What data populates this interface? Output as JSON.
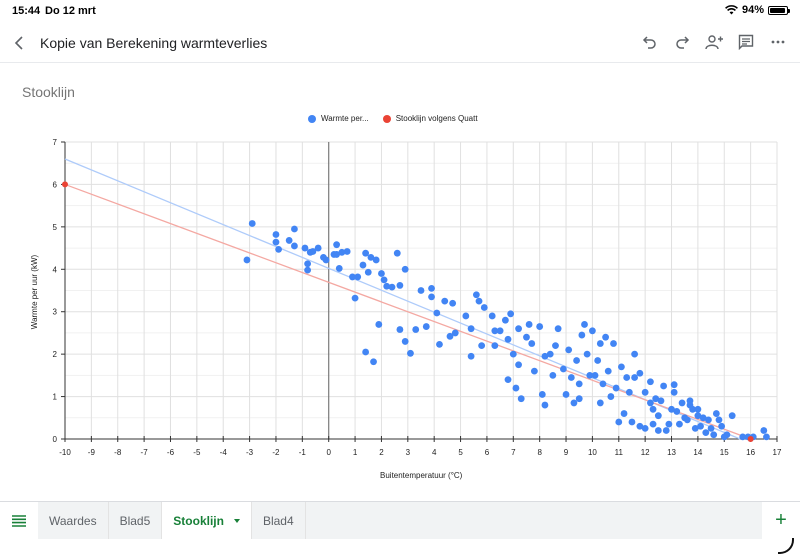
{
  "status_bar": {
    "time": "15:44",
    "date": "Do 12 mrt",
    "battery": "94%"
  },
  "app_bar": {
    "title": "Kopie van Berekening warmteverlies",
    "icons": [
      "back-icon",
      "undo-icon",
      "redo-icon",
      "add-person-icon",
      "comment-icon",
      "more-icon"
    ]
  },
  "sheet_tabs": {
    "tabs": [
      {
        "label": "Waardes",
        "active": false
      },
      {
        "label": "Blad5",
        "active": false
      },
      {
        "label": "Stooklijn",
        "active": true
      },
      {
        "label": "Blad4",
        "active": false
      }
    ],
    "add_label": "+"
  },
  "colors": {
    "series1": "#4285f4",
    "series2": "#ea4335",
    "trend1": "#aecbfa",
    "trend2": "#f4a8a2",
    "green": "#188038"
  },
  "chart_data": {
    "type": "scatter",
    "title": "Stooklijn",
    "xlabel": "Buitentemperatuur (°C)",
    "ylabel": "Warmte per uur (kW)",
    "xlim": [
      -10,
      17
    ],
    "ylim": [
      0,
      7
    ],
    "xticks": [
      -10,
      -9,
      -8,
      -7,
      -6,
      -5,
      -4,
      -3,
      -2,
      -1,
      0,
      1,
      2,
      3,
      4,
      5,
      6,
      7,
      8,
      9,
      10,
      11,
      12,
      13,
      14,
      15,
      16,
      17
    ],
    "yticks": [
      0,
      1,
      2,
      3,
      4,
      5,
      6,
      7
    ],
    "grid": true,
    "legend_position": "top",
    "legend": [
      "Warmte per...",
      "Stooklijn volgens Quatt"
    ],
    "series": [
      {
        "name": "Warmte per...",
        "color": "#4285f4",
        "trendline": {
          "x": [
            -10,
            15.6
          ],
          "y": [
            6.6,
            0
          ],
          "color": "#aecbfa"
        },
        "points": [
          [
            -3.1,
            4.22
          ],
          [
            -2.9,
            5.08
          ],
          [
            -2.0,
            4.82
          ],
          [
            -2.0,
            4.64
          ],
          [
            -1.9,
            4.47
          ],
          [
            -1.5,
            4.68
          ],
          [
            -1.3,
            4.95
          ],
          [
            -1.3,
            4.55
          ],
          [
            -0.9,
            4.5
          ],
          [
            -0.8,
            4.13
          ],
          [
            -0.8,
            3.98
          ],
          [
            -0.7,
            4.4
          ],
          [
            -0.6,
            4.42
          ],
          [
            -0.4,
            4.5
          ],
          [
            -0.2,
            4.28
          ],
          [
            -0.1,
            4.22
          ],
          [
            0.2,
            4.35
          ],
          [
            0.3,
            4.58
          ],
          [
            0.3,
            4.35
          ],
          [
            0.4,
            4.02
          ],
          [
            0.5,
            4.4
          ],
          [
            0.7,
            4.42
          ],
          [
            0.9,
            3.82
          ],
          [
            1.0,
            3.32
          ],
          [
            1.1,
            3.82
          ],
          [
            1.3,
            4.1
          ],
          [
            1.4,
            4.38
          ],
          [
            1.4,
            2.05
          ],
          [
            1.5,
            3.93
          ],
          [
            1.6,
            4.28
          ],
          [
            1.7,
            1.82
          ],
          [
            1.8,
            4.22
          ],
          [
            1.9,
            2.7
          ],
          [
            2.0,
            3.9
          ],
          [
            2.1,
            3.75
          ],
          [
            2.2,
            3.6
          ],
          [
            2.4,
            3.58
          ],
          [
            2.6,
            4.38
          ],
          [
            2.7,
            3.62
          ],
          [
            2.7,
            2.58
          ],
          [
            2.9,
            2.3
          ],
          [
            2.9,
            4.0
          ],
          [
            3.1,
            2.02
          ],
          [
            3.3,
            2.58
          ],
          [
            3.5,
            3.5
          ],
          [
            3.7,
            2.65
          ],
          [
            3.9,
            3.55
          ],
          [
            3.9,
            3.35
          ],
          [
            4.1,
            2.97
          ],
          [
            4.2,
            2.23
          ],
          [
            4.4,
            3.25
          ],
          [
            4.6,
            2.42
          ],
          [
            4.7,
            3.2
          ],
          [
            4.8,
            2.5
          ],
          [
            5.2,
            2.9
          ],
          [
            5.4,
            2.6
          ],
          [
            5.4,
            1.95
          ],
          [
            5.6,
            3.4
          ],
          [
            5.7,
            3.25
          ],
          [
            5.8,
            2.2
          ],
          [
            5.9,
            3.1
          ],
          [
            6.2,
            2.9
          ],
          [
            6.3,
            2.55
          ],
          [
            6.3,
            2.2
          ],
          [
            6.5,
            2.55
          ],
          [
            6.7,
            2.8
          ],
          [
            6.8,
            1.4
          ],
          [
            6.8,
            2.35
          ],
          [
            6.9,
            2.95
          ],
          [
            7.0,
            2.0
          ],
          [
            7.2,
            2.6
          ],
          [
            7.2,
            1.75
          ],
          [
            7.5,
            2.4
          ],
          [
            7.6,
            2.7
          ],
          [
            7.7,
            2.25
          ],
          [
            8.0,
            2.65
          ],
          [
            8.2,
            1.95
          ],
          [
            8.4,
            2.0
          ],
          [
            8.6,
            2.2
          ],
          [
            8.7,
            2.6
          ],
          [
            8.9,
            1.65
          ],
          [
            9.1,
            2.1
          ],
          [
            9.2,
            1.45
          ],
          [
            9.4,
            1.85
          ],
          [
            9.6,
            2.45
          ],
          [
            9.7,
            2.7
          ],
          [
            9.8,
            2.0
          ],
          [
            10.0,
            2.55
          ],
          [
            10.1,
            1.5
          ],
          [
            10.2,
            1.85
          ],
          [
            10.3,
            2.25
          ],
          [
            10.5,
            2.4
          ],
          [
            10.6,
            1.6
          ],
          [
            10.8,
            2.25
          ],
          [
            11.1,
            1.7
          ],
          [
            11.3,
            1.45
          ],
          [
            11.4,
            1.1
          ],
          [
            11.6,
            2.0
          ],
          [
            11.8,
            1.55
          ],
          [
            12.0,
            1.1
          ],
          [
            12.2,
            0.85
          ],
          [
            12.3,
            0.7
          ],
          [
            12.4,
            0.95
          ],
          [
            12.5,
            0.55
          ],
          [
            12.7,
            1.25
          ],
          [
            12.9,
            0.35
          ],
          [
            13.1,
            1.28
          ],
          [
            13.2,
            0.65
          ],
          [
            13.4,
            0.85
          ],
          [
            13.5,
            0.5
          ],
          [
            13.7,
            0.8
          ],
          [
            13.8,
            0.7
          ],
          [
            13.9,
            0.25
          ],
          [
            14.0,
            0.55
          ],
          [
            14.2,
            0.5
          ],
          [
            14.4,
            0.45
          ],
          [
            14.5,
            0.25
          ],
          [
            14.7,
            0.6
          ],
          [
            14.9,
            0.3
          ],
          [
            15.1,
            0.1
          ],
          [
            15.3,
            0.55
          ],
          [
            15.7,
            0.05
          ],
          [
            15.9,
            0.05
          ],
          [
            16.1,
            0.05
          ],
          [
            16.5,
            0.2
          ],
          [
            16.6,
            0.05
          ],
          [
            10.3,
            0.85
          ],
          [
            10.7,
            1.0
          ],
          [
            11.0,
            0.4
          ],
          [
            11.2,
            0.6
          ],
          [
            11.5,
            0.4
          ],
          [
            11.8,
            0.3
          ],
          [
            12.0,
            0.25
          ],
          [
            12.3,
            0.35
          ],
          [
            12.5,
            0.2
          ],
          [
            12.8,
            0.2
          ],
          [
            13.0,
            0.7
          ],
          [
            13.3,
            0.35
          ],
          [
            13.6,
            0.45
          ],
          [
            14.1,
            0.3
          ],
          [
            14.3,
            0.15
          ],
          [
            14.6,
            0.1
          ],
          [
            14.8,
            0.45
          ],
          [
            15.0,
            0.05
          ],
          [
            9.0,
            1.05
          ],
          [
            9.3,
            0.85
          ],
          [
            9.5,
            0.95
          ],
          [
            9.9,
            1.5
          ],
          [
            10.4,
            1.3
          ],
          [
            10.9,
            1.2
          ],
          [
            11.6,
            1.45
          ],
          [
            12.2,
            1.35
          ],
          [
            12.6,
            0.9
          ],
          [
            13.1,
            1.1
          ],
          [
            13.7,
            0.9
          ],
          [
            14.0,
            0.7
          ],
          [
            7.3,
            0.95
          ],
          [
            7.1,
            1.2
          ],
          [
            7.8,
            1.6
          ],
          [
            8.1,
            1.05
          ],
          [
            8.2,
            0.8
          ],
          [
            8.5,
            1.5
          ],
          [
            9.5,
            1.3
          ]
        ]
      },
      {
        "name": "Stooklijn volgens Quatt",
        "color": "#ea4335",
        "trendline": {
          "x": [
            -10,
            16
          ],
          "y": [
            6.0,
            0
          ],
          "color": "#f4a8a2"
        },
        "points": [
          [
            -10,
            6.0
          ],
          [
            16,
            0.0
          ]
        ]
      }
    ]
  }
}
